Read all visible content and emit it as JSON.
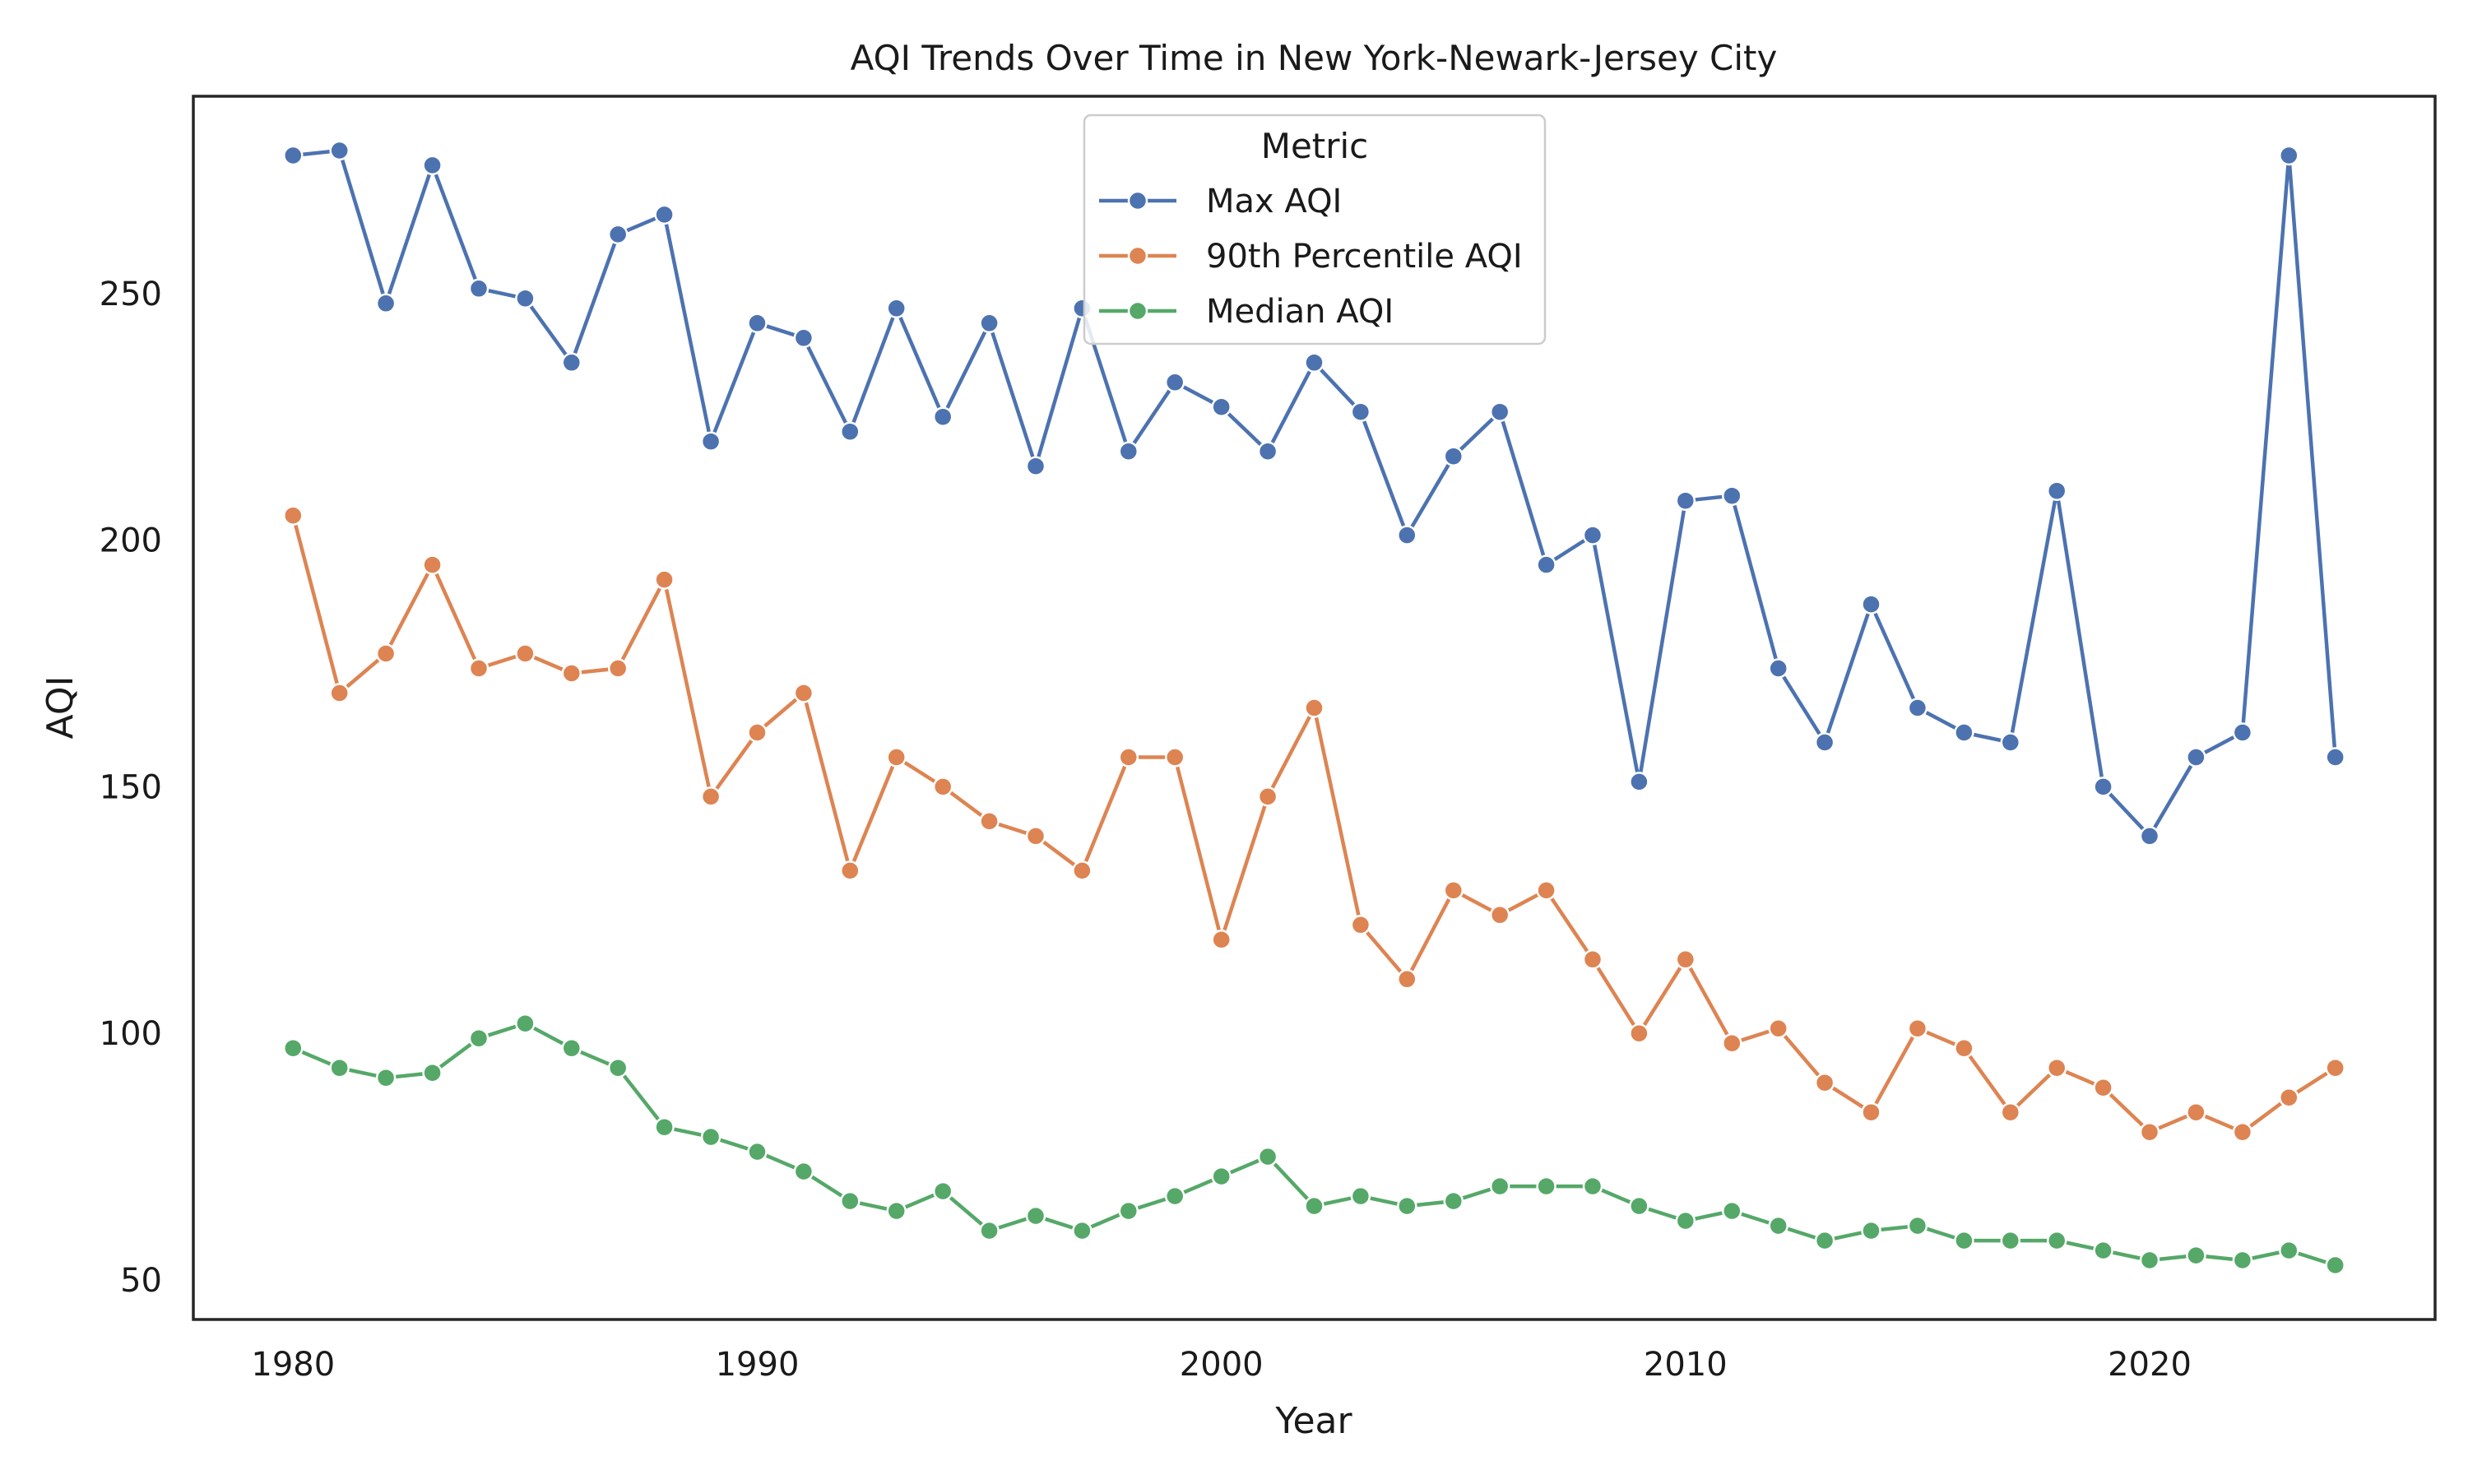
{
  "chart_data": {
    "type": "line",
    "title": "AQI Trends Over Time in New York-Newark-Jersey City",
    "xlabel": "Year",
    "ylabel": "AQI",
    "xlim": [
      1977.85,
      2026.15
    ],
    "ylim": [
      42,
      290
    ],
    "xticks": [
      1980,
      1990,
      2000,
      2010,
      2020
    ],
    "yticks": [
      50,
      100,
      150,
      200,
      250
    ],
    "grid": false,
    "legend": {
      "title": "Metric",
      "placement": "upper center"
    },
    "x": [
      1980,
      1981,
      1982,
      1983,
      1984,
      1985,
      1986,
      1987,
      1988,
      1989,
      1990,
      1991,
      1992,
      1993,
      1994,
      1995,
      1996,
      1997,
      1998,
      1999,
      2000,
      2001,
      2002,
      2003,
      2004,
      2005,
      2006,
      2007,
      2008,
      2009,
      2010,
      2011,
      2012,
      2013,
      2014,
      2015,
      2016,
      2017,
      2018,
      2019,
      2020,
      2021,
      2022,
      2023,
      2024
    ],
    "series": [
      {
        "name": "Max AQI",
        "color": "#4c72b0",
        "values": [
          278,
          279,
          248,
          276,
          251,
          249,
          236,
          262,
          266,
          220,
          244,
          241,
          222,
          247,
          225,
          244,
          215,
          247,
          218,
          232,
          227,
          218,
          236,
          226,
          201,
          217,
          226,
          195,
          201,
          151,
          208,
          209,
          174,
          159,
          187,
          166,
          161,
          159,
          210,
          150,
          140,
          156,
          161,
          278,
          156
        ]
      },
      {
        "name": "90th Percentile AQI",
        "color": "#dd8452",
        "values": [
          205,
          169,
          177,
          195,
          174,
          177,
          173,
          174,
          192,
          148,
          161,
          169,
          133,
          156,
          150,
          143,
          140,
          133,
          156,
          156,
          119,
          148,
          166,
          122,
          111,
          129,
          124,
          129,
          115,
          100,
          115,
          98,
          101,
          90,
          84,
          101,
          97,
          84,
          93,
          89,
          80,
          84,
          80,
          87,
          93
        ]
      },
      {
        "name": "Median AQI",
        "color": "#55a868",
        "values": [
          97,
          93,
          91,
          92,
          99,
          102,
          97,
          93,
          81,
          79,
          76,
          72,
          66,
          64,
          68,
          60,
          63,
          60,
          64,
          67,
          71,
          75,
          65,
          67,
          65,
          66,
          69,
          69,
          69,
          65,
          62,
          64,
          61,
          58,
          60,
          61,
          58,
          58,
          58,
          56,
          54,
          55,
          54,
          56,
          53
        ]
      }
    ]
  }
}
